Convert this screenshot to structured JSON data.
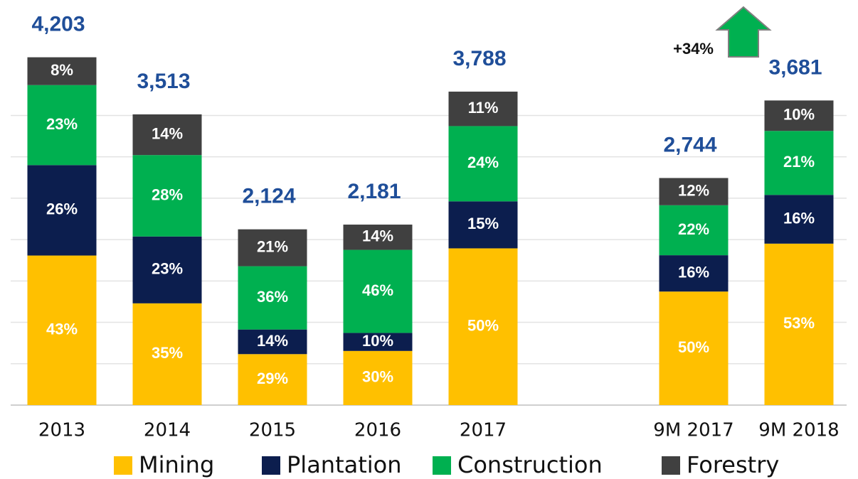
{
  "chart_data": {
    "type": "stacked_bar",
    "categories": [
      "2013",
      "2014",
      "2015",
      "2016",
      "2017",
      null,
      "9M 2017",
      "9M 2018"
    ],
    "series": [
      {
        "name": "Mining",
        "color": "#ffc000",
        "values": [
          43,
          35,
          29,
          30,
          50,
          null,
          50,
          53
        ],
        "value_labels": [
          "43%",
          "35%",
          "29%",
          "30%",
          "50%",
          null,
          "50%",
          "53%"
        ]
      },
      {
        "name": "Plantation",
        "color": "#0c1e4e",
        "values": [
          26,
          23,
          14,
          10,
          15,
          null,
          16,
          16
        ],
        "value_labels": [
          "26%",
          "23%",
          "14%",
          "10%",
          "15%",
          null,
          "16%",
          "16%"
        ]
      },
      {
        "name": "Construction",
        "color": "#00b050",
        "values": [
          23,
          28,
          36,
          46,
          24,
          null,
          22,
          21
        ],
        "value_labels": [
          "23%",
          "28%",
          "36%",
          "46%",
          "24%",
          null,
          "22%",
          "21%"
        ]
      },
      {
        "name": "Forestry",
        "color": "#404040",
        "values": [
          8,
          14,
          21,
          14,
          11,
          null,
          12,
          10
        ],
        "value_labels": [
          "8%",
          "14%",
          "21%",
          "14%",
          "11%",
          null,
          "12%",
          "10%"
        ]
      }
    ],
    "totals": {
      "values": [
        4203,
        3513,
        2124,
        2181,
        3788,
        null,
        2744,
        3681
      ],
      "value_labels": [
        "4,203",
        "3,513",
        "2,124",
        "2,181",
        "3,788",
        null,
        "2,744",
        "3,681"
      ]
    },
    "annotation": "+34%",
    "ylim": [
      0,
      4500
    ],
    "yticks": [
      0,
      500,
      1000,
      1500,
      2000,
      2500,
      3000,
      3500
    ],
    "grid": true,
    "legend": "bottom"
  }
}
